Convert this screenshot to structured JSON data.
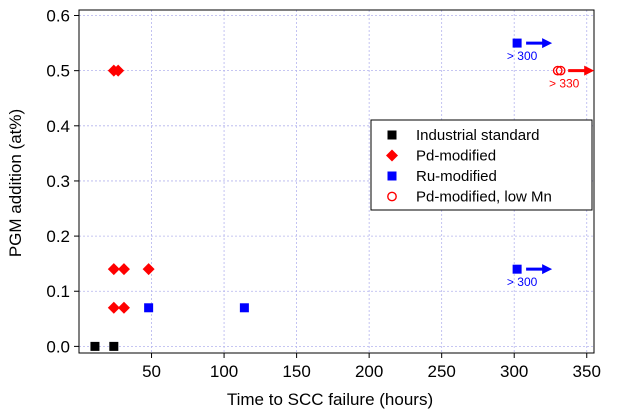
{
  "chart_data": {
    "type": "scatter",
    "title": "",
    "xlabel": "Time to SCC failure  (hours)",
    "ylabel": "PGM addition  (at%)",
    "xlim": [
      0,
      355
    ],
    "ylim": [
      -0.012,
      0.61
    ],
    "x_ticks": [
      50,
      100,
      150,
      200,
      250,
      300,
      350
    ],
    "x_tick_labels": [
      "50",
      "100",
      "150",
      "200",
      "250",
      "300",
      "350"
    ],
    "y_ticks": [
      0.0,
      0.1,
      0.2,
      0.3,
      0.4,
      0.5,
      0.6
    ],
    "y_tick_labels": [
      "0.0",
      "0.1",
      "0.2",
      "0.3",
      "0.4",
      "0.5",
      "0.6"
    ],
    "grid": true,
    "legend_position": "right",
    "series": [
      {
        "name": "Industrial standard",
        "marker": "square",
        "color": "#000000",
        "points": [
          [
            11,
            0.0
          ],
          [
            24,
            0.0
          ]
        ]
      },
      {
        "name": "Pd-modified",
        "marker": "diamond",
        "color": "#ff0000",
        "points": [
          [
            24,
            0.5
          ],
          [
            27,
            0.5
          ],
          [
            24,
            0.14
          ],
          [
            31,
            0.14
          ],
          [
            48,
            0.14
          ],
          [
            24,
            0.07
          ],
          [
            31,
            0.07
          ]
        ]
      },
      {
        "name": "Ru-modified",
        "marker": "square",
        "color": "#0000ff",
        "points": [
          [
            48,
            0.07
          ],
          [
            114,
            0.07
          ],
          [
            302,
            0.55
          ],
          [
            302,
            0.14
          ]
        ]
      },
      {
        "name": "Pd-modified, low Mn",
        "marker": "open-circle",
        "color": "#ff0000",
        "points": [
          [
            330,
            0.5
          ],
          [
            332,
            0.5
          ]
        ]
      }
    ],
    "annotations": [
      {
        "text": "> 300",
        "x": 302,
        "y": 0.55,
        "color": "#0000ff"
      },
      {
        "text": "> 300",
        "x": 302,
        "y": 0.14,
        "color": "#0000ff"
      },
      {
        "text": "> 330",
        "x": 331,
        "y": 0.5,
        "color": "#ff0000"
      }
    ]
  }
}
